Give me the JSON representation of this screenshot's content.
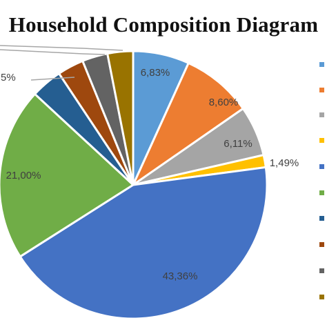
{
  "chart_data": {
    "type": "pie",
    "title": "Household Composition Diagram",
    "slices": [
      {
        "label": "6,83%",
        "value": 6.83,
        "color": "#5b9bd5"
      },
      {
        "label": "8,60%",
        "value": 8.6,
        "color": "#ed7d31"
      },
      {
        "label": "6,11%",
        "value": 6.11,
        "color": "#a5a5a5"
      },
      {
        "label": "1,49%",
        "value": 1.49,
        "color": "#ffc000"
      },
      {
        "label": "43,36%",
        "value": 43.36,
        "color": "#4472c4"
      },
      {
        "label": "21,00%",
        "value": 21.0,
        "color": "#70ad47"
      },
      {
        "label": "",
        "value": 3.8,
        "color": "#255e91"
      },
      {
        "label": "",
        "value": 3.2,
        "color": "#9e480e"
      },
      {
        "label": "",
        "value": 3.1,
        "color": "#636363"
      },
      {
        "label": "",
        "value": 3.1,
        "color": "#997300"
      }
    ],
    "partial_label": "5%",
    "legend_position": "right"
  }
}
